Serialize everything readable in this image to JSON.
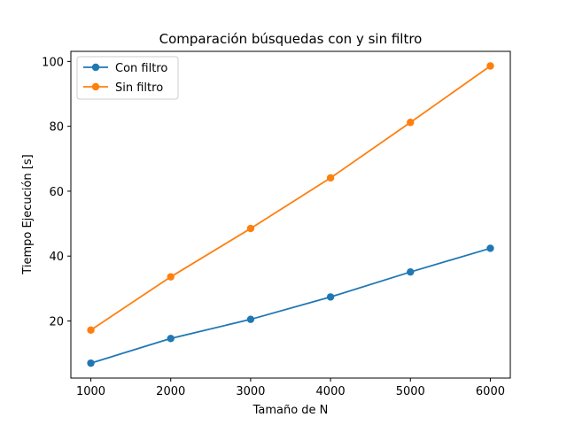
{
  "chart_data": {
    "type": "line",
    "title": "Comparación búsquedas con y sin filtro",
    "xlabel": "Tamaño de N",
    "ylabel": "Tiempo Ejecución [s]",
    "x": [
      1000,
      2000,
      3000,
      4000,
      5000,
      6000
    ],
    "xlim": [
      750,
      6250
    ],
    "ylim": [
      2.4,
      103.1
    ],
    "xticks": [
      1000,
      2000,
      3000,
      4000,
      5000,
      6000
    ],
    "yticks": [
      20,
      40,
      60,
      80,
      100
    ],
    "grid": false,
    "legend_position": "upper-left",
    "series": [
      {
        "name": "Con filtro",
        "color": "#1f77b4",
        "marker": "circle",
        "values": [
          7.0,
          14.6,
          20.5,
          27.4,
          35.1,
          42.4
        ]
      },
      {
        "name": "Sin filtro",
        "color": "#ff7f0e",
        "marker": "circle",
        "values": [
          17.2,
          33.6,
          48.5,
          64.1,
          81.2,
          98.6
        ]
      }
    ]
  }
}
